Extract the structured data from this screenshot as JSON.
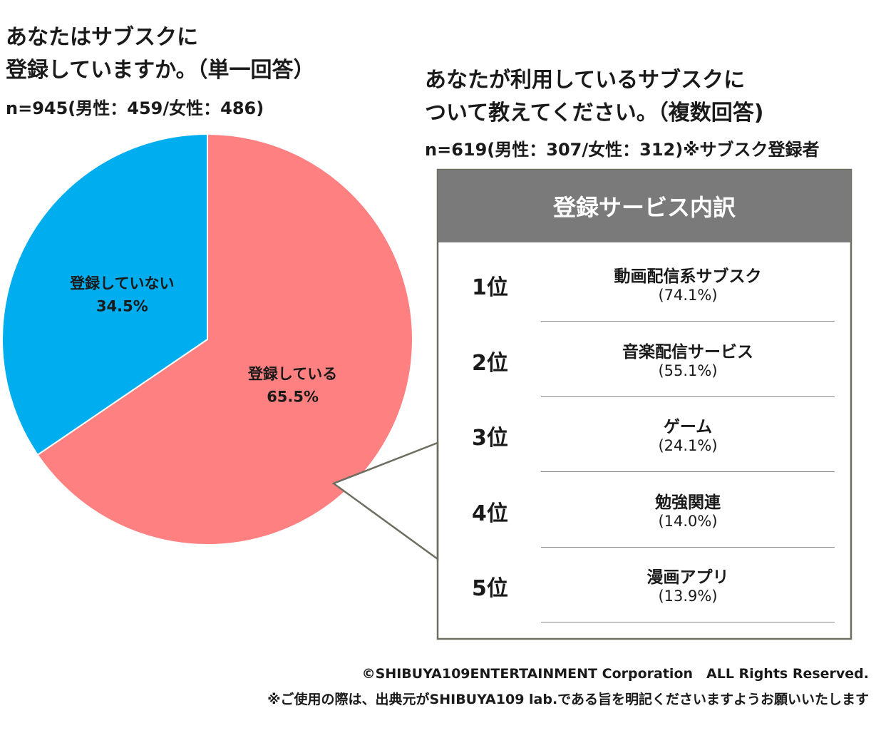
{
  "left": {
    "title_line1": "あなたはサブスクに",
    "title_line2": "登録していますか。（単一回答）",
    "n_note": "n=945(男性：459/女性：486)"
  },
  "right": {
    "title_line1": "あなたが利用しているサブスクに",
    "title_line2": "ついて教えてください。（複数回答)",
    "n_note": "n=619(男性：307/女性：312)※サブスク登録者"
  },
  "chart_data": [
    {
      "type": "pie",
      "title": "あなたはサブスクに登録していますか。（単一回答）",
      "categories": [
        "登録している",
        "登録していない"
      ],
      "values": [
        65.5,
        34.5
      ],
      "value_labels": [
        "65.5%",
        "34.5%"
      ],
      "colors": [
        "#ff8080",
        "#00adee"
      ]
    },
    {
      "type": "table",
      "title": "登録サービス内訳",
      "rows": [
        {
          "rank": "1位",
          "name": "動画配信系サブスク",
          "pct": "(74.1%)",
          "value": 74.1
        },
        {
          "rank": "2位",
          "name": "音楽配信サービス",
          "pct": "(55.1%)",
          "value": 55.1
        },
        {
          "rank": "3位",
          "name": "ゲーム",
          "pct": "(24.1%)",
          "value": 24.1
        },
        {
          "rank": "4位",
          "name": "勉強関連",
          "pct": "(14.0%)",
          "value": 14.0
        },
        {
          "rank": "5位",
          "name": "漫画アプリ",
          "pct": "(13.9%)",
          "value": 13.9
        }
      ]
    }
  ],
  "footer": {
    "copyright": "©SHIBUYA109ENTERTAINMENT Corporation　ALL Rights Reserved.",
    "note": "※ご使用の際は、出典元がSHIBUYA109 lab.である旨を明記くださいますようお願いいたします"
  },
  "colors": {
    "panel_header_bg": "#7a7a7a",
    "panel_border": "#6e6e60"
  }
}
